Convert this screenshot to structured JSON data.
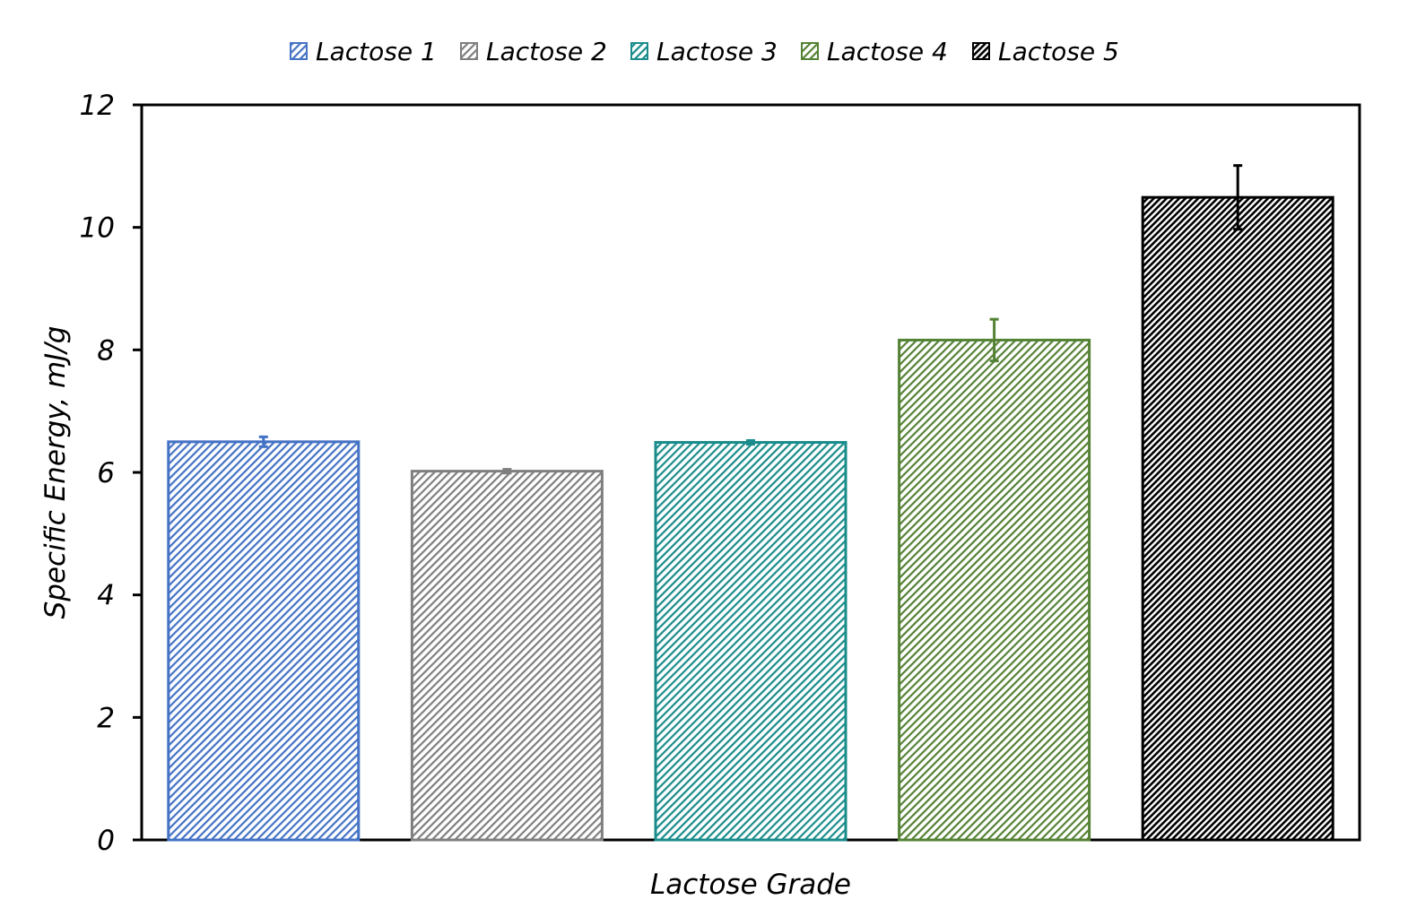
{
  "chart_data": {
    "type": "bar",
    "title": "",
    "xlabel": "Lactose Grade",
    "ylabel": "Specific Energy, mJ/g",
    "ylim": [
      0,
      12
    ],
    "yticks": [
      0,
      2,
      4,
      6,
      8,
      10,
      12
    ],
    "yticklabels": [
      "0",
      "2",
      "4",
      "6",
      "8",
      "10",
      "12"
    ],
    "grid": false,
    "legend_position": "top",
    "series": [
      {
        "name": "Lactose 1",
        "value": 6.5,
        "error": 0.08,
        "color": "#4472c4"
      },
      {
        "name": "Lactose 2",
        "value": 6.02,
        "error": 0.03,
        "color": "#7f7f7f"
      },
      {
        "name": "Lactose 3",
        "value": 6.49,
        "error": 0.03,
        "color": "#1a8c8c"
      },
      {
        "name": "Lactose 4",
        "value": 8.16,
        "error": 0.34,
        "color": "#548235"
      },
      {
        "name": "Lactose 5",
        "value": 10.49,
        "error": 0.52,
        "color": "#000000"
      }
    ]
  }
}
